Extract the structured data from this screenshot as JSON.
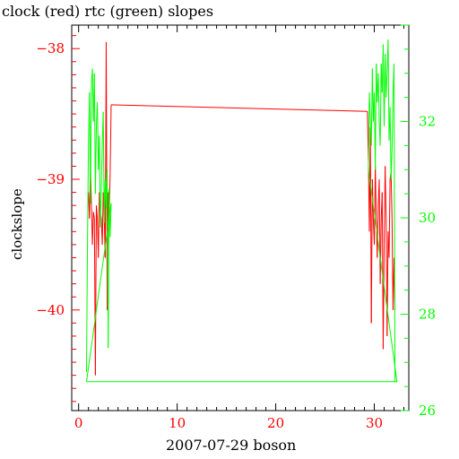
{
  "chart_data": {
    "type": "line",
    "title": "clock (red) rtc (green) slopes",
    "xlabel": "2007-07-29 boson",
    "ylabel": "clockslope",
    "xlim": [
      -0.7,
      33.5
    ],
    "ylim": [
      -40.77,
      -37.82
    ],
    "y2lim": [
      26.0,
      34.0
    ],
    "x_ticks": [
      0,
      10,
      20,
      30
    ],
    "y_ticks": [
      -38,
      -39,
      -40
    ],
    "y2_ticks": [
      26,
      28,
      30,
      32
    ],
    "colors": {
      "clock": "#ff0000",
      "rtc": "#00ff00",
      "axes": "#000000"
    },
    "series": [
      {
        "axis": "left",
        "color": "#ff0000",
        "x": [
          1.0,
          1.1,
          1.2,
          1.3,
          1.4,
          1.5,
          1.6,
          1.7,
          1.8,
          1.9,
          2.0,
          2.1,
          2.2,
          2.3,
          2.4,
          2.5,
          2.6,
          2.7,
          2.8,
          2.9,
          3.0,
          3.1,
          3.2,
          3.3,
          29.3,
          29.4,
          29.5,
          29.6,
          29.7,
          29.8,
          29.9,
          30.0,
          30.1,
          30.2,
          30.3,
          30.4,
          30.5,
          30.6,
          30.7,
          30.8,
          30.9,
          31.0,
          31.1,
          31.2,
          31.3,
          31.4,
          31.5,
          31.6,
          31.7,
          31.8,
          31.9,
          32.0,
          32.1
        ],
        "y": [
          -39.1,
          -39.3,
          -38.9,
          -39.2,
          -39.5,
          -39.25,
          -39.3,
          -40.5,
          -39.2,
          -39.3,
          -39.6,
          -39.1,
          -39.25,
          -39.3,
          -39.5,
          -39.1,
          -39.3,
          -39.6,
          -37.95,
          -40.0,
          -39.1,
          -39.3,
          -38.95,
          -38.43,
          -38.48,
          -38.85,
          -39.4,
          -38.6,
          -40.1,
          -39.0,
          -39.3,
          -39.5,
          -38.9,
          -39.3,
          -39.6,
          -39.2,
          -39.0,
          -39.8,
          -39.3,
          -39.1,
          -40.3,
          -39.5,
          -38.9,
          -39.3,
          -40.2,
          -39.4,
          -39.6,
          -39.0,
          -38.95,
          -39.3,
          -40.0,
          -39.6,
          -40.0
        ]
      },
      {
        "axis": "right",
        "color": "#00ff00",
        "x": [
          0.8,
          0.9,
          1.0,
          1.1,
          1.2,
          1.3,
          1.4,
          1.5,
          1.6,
          1.7,
          1.8,
          1.9,
          2.0,
          2.1,
          2.2,
          2.3,
          2.4,
          2.5,
          2.6,
          2.7,
          2.8,
          2.9,
          3.0,
          3.1,
          3.2,
          3.3,
          0.8,
          32.3,
          29.4,
          29.5,
          29.6,
          29.7,
          29.8,
          29.9,
          30.0,
          30.1,
          30.2,
          30.3,
          30.4,
          30.5,
          30.6,
          30.7,
          30.8,
          30.9,
          31.0,
          31.1,
          31.2,
          31.3,
          31.4,
          31.5,
          31.6,
          31.7,
          31.8,
          31.9,
          32.0,
          32.1,
          32.2,
          32.3
        ],
        "y": [
          26.8,
          29.5,
          31.5,
          32.6,
          30.3,
          32.8,
          33.1,
          32.0,
          33.0,
          30.5,
          31.9,
          32.4,
          31.0,
          31.7,
          29.8,
          30.6,
          31.5,
          32.2,
          29.9,
          30.8,
          30.2,
          31.0,
          27.3,
          30.6,
          29.6,
          30.3,
          26.6,
          26.6,
          31.0,
          32.6,
          32.0,
          31.5,
          33.1,
          32.0,
          32.6,
          31.0,
          33.2,
          32.4,
          33.0,
          32.0,
          31.5,
          33.2,
          32.6,
          33.6,
          31.9,
          33.4,
          32.5,
          33.0,
          33.7,
          31.6,
          32.3,
          30.8,
          31.4,
          32.6,
          33.2,
          26.6,
          26.6,
          26.6
        ]
      }
    ]
  }
}
